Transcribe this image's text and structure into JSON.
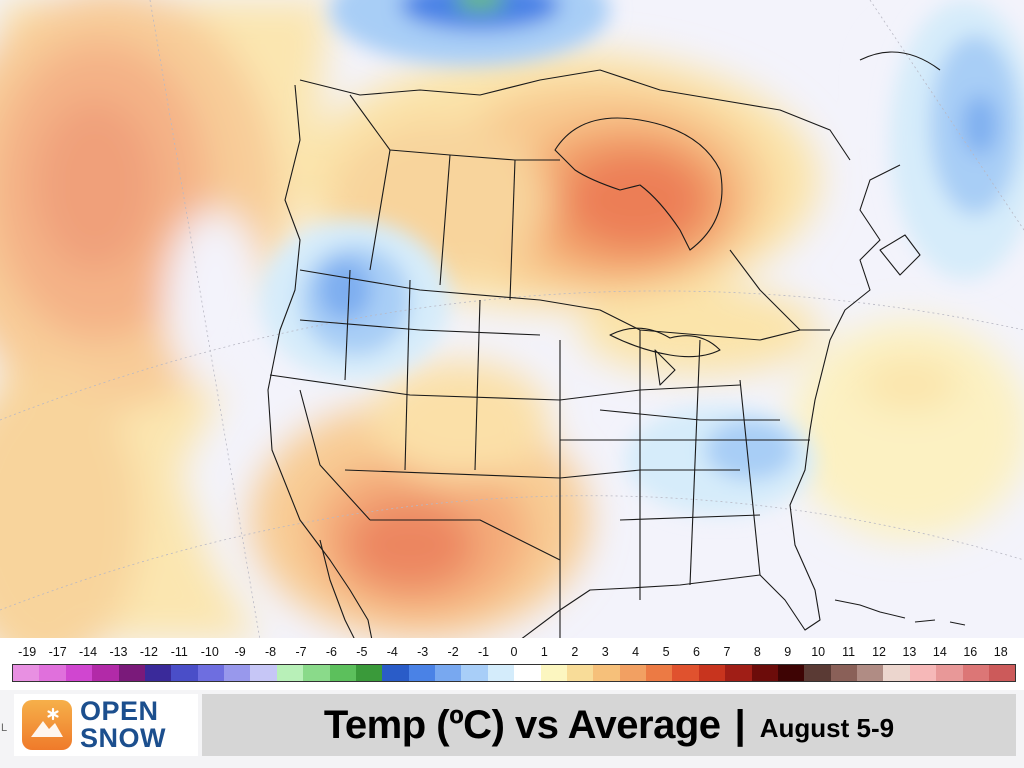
{
  "map": {
    "title": "Temp (ºC) vs Average",
    "date_range": "August 5-9",
    "region": "North America",
    "anomaly_centers": [
      {
        "area": "Northern Ontario / Hudson Bay",
        "anomaly_c": 7
      },
      {
        "area": "Arizona / New Mexico",
        "anomaly_c": 6
      },
      {
        "area": "Northeast Pacific",
        "anomaly_c": 5
      },
      {
        "area": "Pacific Northwest / Idaho",
        "anomaly_c": -3
      },
      {
        "area": "Virginia / North Carolina",
        "anomaly_c": -2
      },
      {
        "area": "Labrador Sea",
        "anomaly_c": -3
      },
      {
        "area": "Canadian Arctic",
        "anomaly_c": -5
      }
    ]
  },
  "scale": {
    "unit": "ºC",
    "ticks": [
      "-19",
      "-17",
      "-14",
      "-13",
      "-12",
      "-11",
      "-10",
      "-9",
      "-8",
      "-7",
      "-6",
      "-5",
      "-4",
      "-3",
      "-2",
      "-1",
      "0",
      "1",
      "2",
      "3",
      "4",
      "5",
      "6",
      "7",
      "8",
      "9",
      "10",
      "11",
      "12",
      "13",
      "14",
      "16",
      "18"
    ],
    "colors": [
      "#e890e2",
      "#e070dc",
      "#d046d0",
      "#b22aa8",
      "#7a1a7a",
      "#3a2a9a",
      "#4a4ec8",
      "#6e6ee0",
      "#9898ec",
      "#c6c6f6",
      "#b8f0b8",
      "#8ada8a",
      "#5cc05c",
      "#3a9a3a",
      "#2a5cc8",
      "#4a82e6",
      "#78a8f0",
      "#a8cef8",
      "#d4ecfb",
      "#ffffff",
      "#fcf6c0",
      "#f8dc98",
      "#f6c07a",
      "#f2a062",
      "#ec7a44",
      "#e0522e",
      "#c8341e",
      "#a01e16",
      "#6c0c0a",
      "#3e0404",
      "#5a3a34",
      "#8a6058",
      "#b08c84",
      "#ecd6ce",
      "#f6b8b8",
      "#e89898",
      "#dc7676",
      "#cc5a5a"
    ]
  },
  "footer": {
    "logo_line1": "OPEN",
    "logo_line2": "SNOW",
    "title": "Temp (ºC) vs Average",
    "separator": "|",
    "date": "August 5-9",
    "edge_letter": "L",
    "colors": {
      "logo_blue": "#1c4f8e",
      "logo_orange": "#ef7a2a",
      "title_bg": "#d6d6d6"
    }
  }
}
